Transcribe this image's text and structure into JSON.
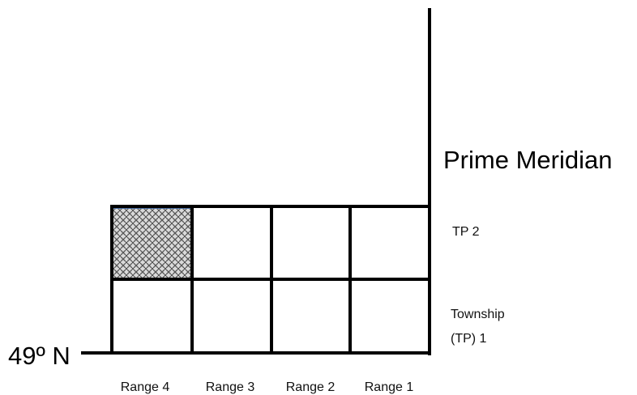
{
  "meridian_label": "Prime Meridian",
  "latitude_label": "49º N",
  "township_labels": [
    [
      "TP 2"
    ],
    [
      "Township",
      "(TP) 1"
    ]
  ],
  "range_labels": [
    "Range 4",
    "Range 3",
    "Range 2",
    "Range 1"
  ]
}
